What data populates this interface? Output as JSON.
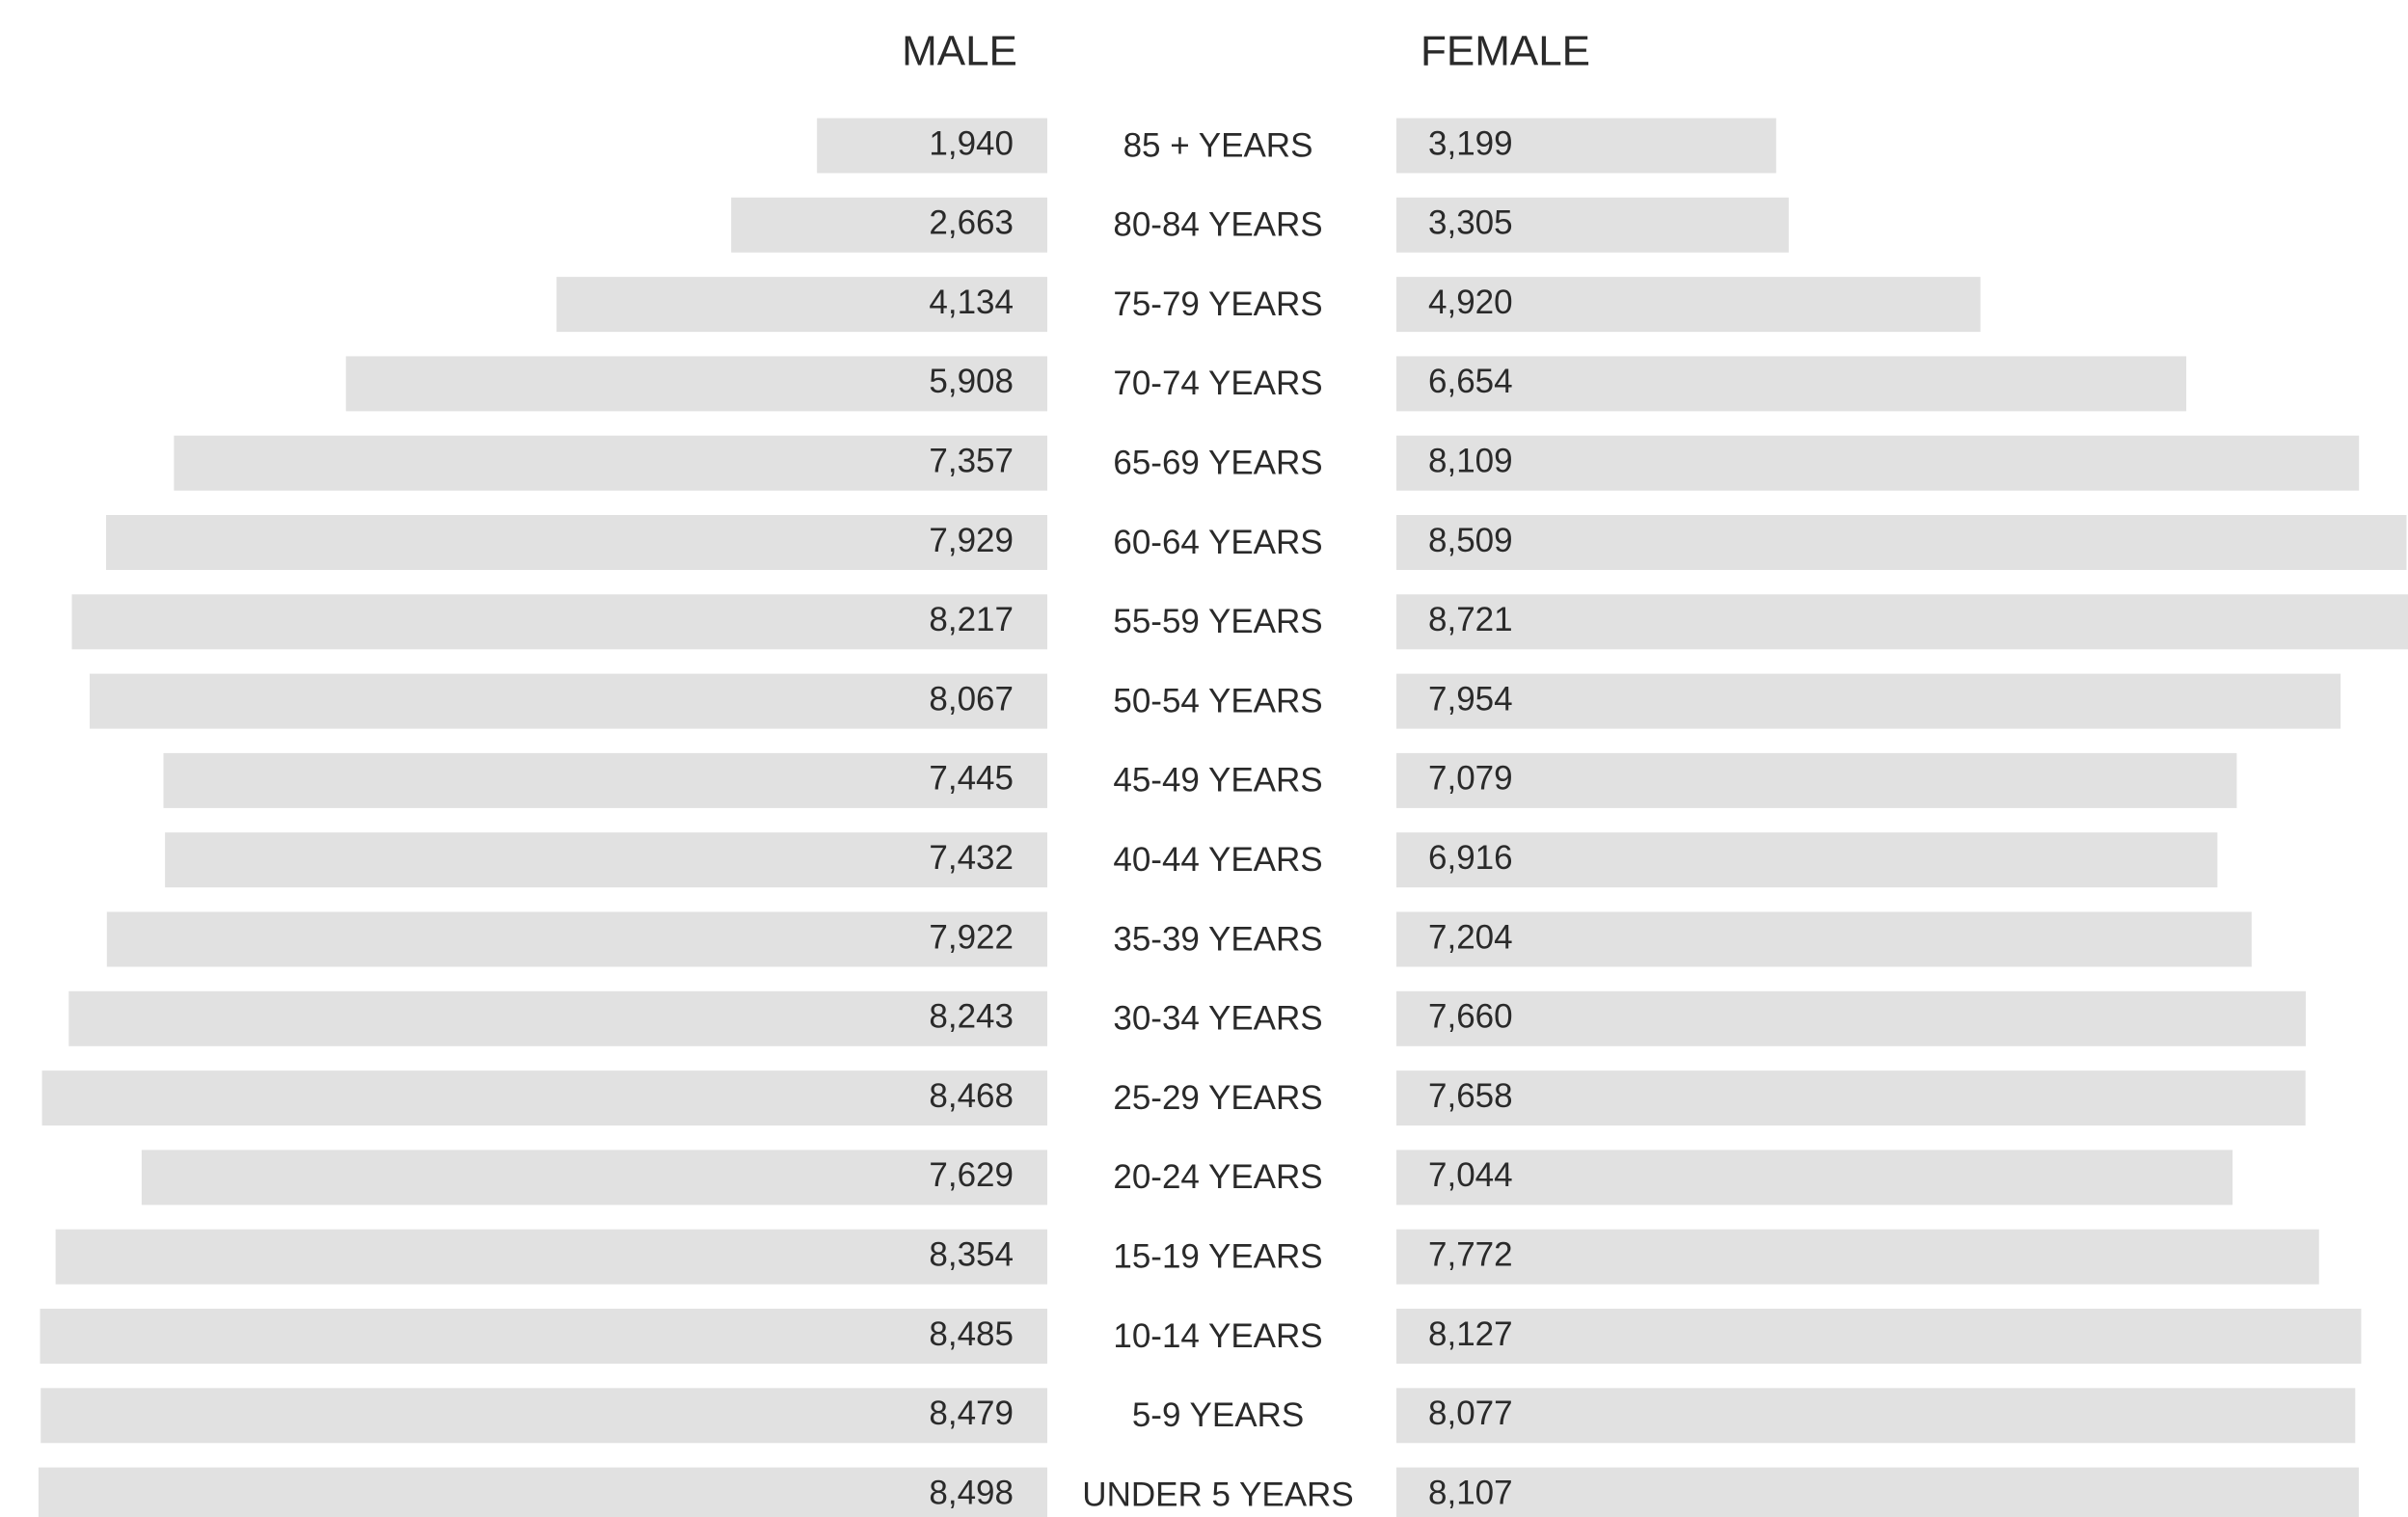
{
  "chart_data": {
    "type": "pyramid",
    "categories": [
      "85 + YEARS",
      "80-84 YEARS",
      "75-79 YEARS",
      "70-74 YEARS",
      "65-69 YEARS",
      "60-64 YEARS",
      "55-59 YEARS",
      "50-54 YEARS",
      "45-49 YEARS",
      "40-44 YEARS",
      "35-39 YEARS",
      "30-34 YEARS",
      "25-29 YEARS",
      "20-24 YEARS",
      "15-19 YEARS",
      "10-14 YEARS",
      "5-9 YEARS",
      "UNDER 5 YEARS"
    ],
    "series": [
      {
        "name": "MALE",
        "color": "#e1e1e1",
        "values": [
          1940,
          2663,
          4134,
          5908,
          7357,
          7929,
          8217,
          8067,
          7445,
          7432,
          7922,
          8243,
          8468,
          7629,
          8354,
          8485,
          8479,
          8498
        ],
        "value_labels": [
          "1,940",
          "2,663",
          "4,134",
          "5,908",
          "7,357",
          "7,929",
          "8,217",
          "8,067",
          "7,445",
          "7,432",
          "7,922",
          "8,243",
          "8,468",
          "7,629",
          "8,354",
          "8,485",
          "8,479",
          "8,498"
        ]
      },
      {
        "name": "FEMALE",
        "color": "#e1e1e1",
        "values": [
          3199,
          3305,
          4920,
          6654,
          8109,
          8509,
          8721,
          7954,
          7079,
          6916,
          7204,
          7660,
          7658,
          7044,
          7772,
          8127,
          8077,
          8107
        ],
        "value_labels": [
          "3,199",
          "3,305",
          "4,920",
          "6,654",
          "8,109",
          "8,509",
          "8,721",
          "7,954",
          "7,079",
          "6,916",
          "7,204",
          "7,660",
          "7,658",
          "7,044",
          "7,772",
          "8,127",
          "8,077",
          "8,107"
        ]
      }
    ]
  }
}
